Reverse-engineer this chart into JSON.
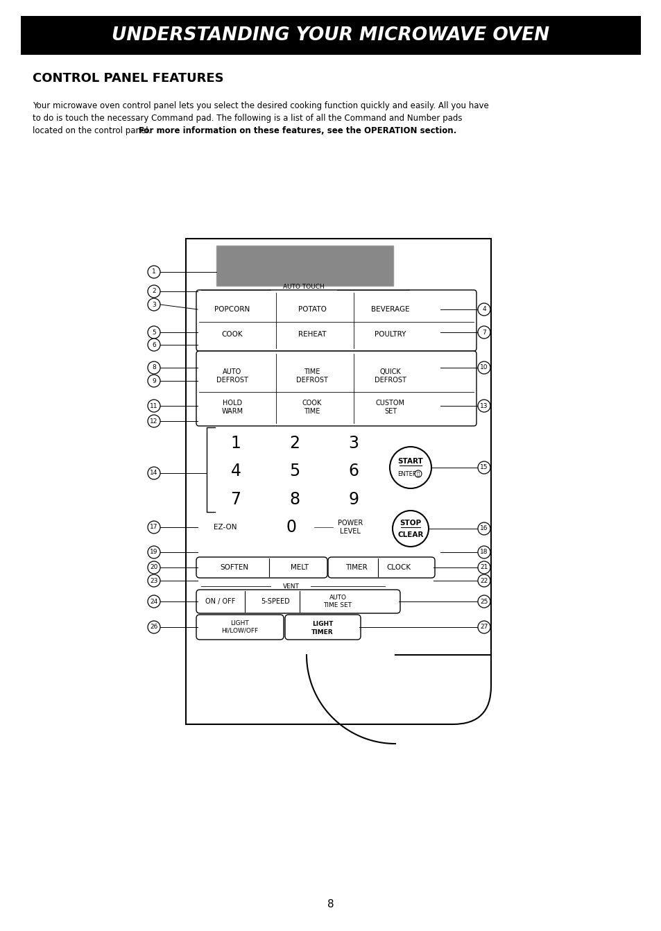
{
  "title_banner": "UNDERSTANDING YOUR MICROWAVE OVEN",
  "subtitle": "CONTROL PANEL FEATURES",
  "body_text_line1": "Your microwave oven control panel lets you select the desired cooking function quickly and easily. All you have",
  "body_text_line2": "to do is touch the necessary Command pad. The following is a list of all the Command and Number pads",
  "body_text_line3_normal": "located on the control panel. ",
  "body_text_line3_bold": "For more information on these features, see the OPERATION section.",
  "page_number": "8",
  "bg_color": "#ffffff",
  "banner_bg": "#000000",
  "banner_text_color": "#ffffff",
  "display_fill": "#888888"
}
